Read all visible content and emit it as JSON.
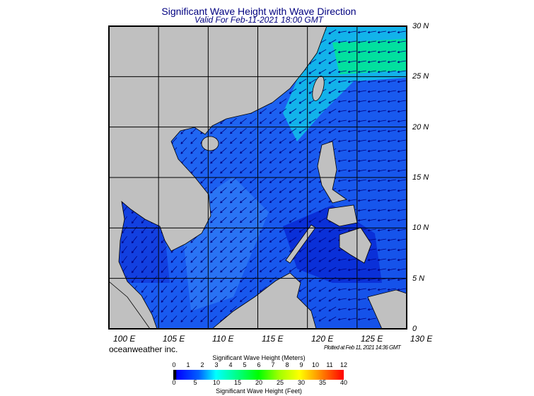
{
  "title": "Significant Wave Height with Wave Direction",
  "subtitle": "Valid For Feb-11-2021 18:00 GMT",
  "map": {
    "lon_labels": [
      "100 E",
      "105 E",
      "110 E",
      "115 E",
      "120 E",
      "125 E",
      "130 E"
    ],
    "lat_labels": [
      "30 N",
      "25 N",
      "20 N",
      "15 N",
      "10 N",
      "5 N",
      "0"
    ],
    "land_color": "#c0c0c0",
    "water_color": "#1a5cf0",
    "arrow_color": "#000080"
  },
  "credit": "oceanweather inc.",
  "plotted": "Plotted at Feb 11, 2021 14:36 GMT",
  "colorbar": {
    "title_meters": "Significant Wave Height (Meters)",
    "title_feet": "Significant Wave Height (Feet)",
    "meters": [
      "0",
      "1",
      "2",
      "3",
      "4",
      "5",
      "6",
      "7",
      "8",
      "9",
      "10",
      "11",
      "12"
    ],
    "feet": [
      "0",
      "5",
      "10",
      "15",
      "20",
      "25",
      "30",
      "35",
      "40"
    ]
  }
}
